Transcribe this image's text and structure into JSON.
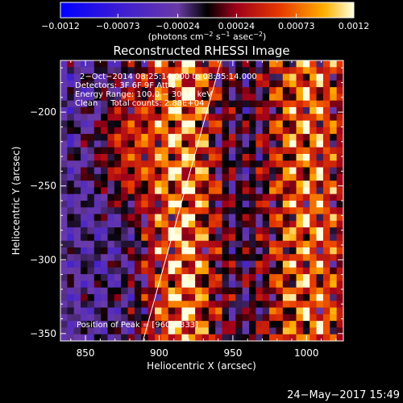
{
  "chart_data": {
    "type": "heatmap",
    "title": "Reconstructed RHESSI Image",
    "xlabel": "Heliocentric X (arcsec)",
    "ylabel": "Heliocentric Y (arcsec)",
    "xlim": [
      833,
      1025
    ],
    "ylim": [
      -355,
      -165
    ],
    "x_ticks": [
      850,
      900,
      950,
      1000
    ],
    "y_ticks": [
      -350,
      -300,
      -250,
      -200
    ],
    "x_tick_labels": [
      "850",
      "900",
      "950",
      "1000"
    ],
    "y_tick_labels": [
      "−350",
      "−300",
      "−250",
      "−200"
    ],
    "colorbar": {
      "ticks": [
        -0.0012,
        -0.00073,
        -0.00024,
        0.00024,
        0.00073,
        0.0012
      ],
      "tick_labels": [
        "−0.0012",
        "−0.00073",
        "−0.00024",
        "0.00024",
        "0.00073",
        "0.0012"
      ],
      "unit_label_parts": [
        "(photons cm",
        "−2",
        " s",
        "−1",
        " asec",
        "−2",
        ")"
      ],
      "range": [
        -0.0012,
        0.0012
      ]
    },
    "annotations": [
      "2−Oct−2014 08:25:14.000 to 08:35:14.000",
      "Detectors: 3F 6F 9F Att 0",
      "Energy Range: 100.0 − 300.0 keV",
      "Clean     Total counts: 2.88E+04"
    ],
    "peak_label": "Position of Peak = [960,−333]",
    "peak_position": [
      960,
      -333
    ],
    "limb_line": [
      [
        889,
        -355
      ],
      [
        942,
        -165
      ]
    ],
    "grid_shape": [
      42,
      42
    ],
    "grid": false
  },
  "footer": {
    "timestamp": "24−May−2017 15:49"
  }
}
